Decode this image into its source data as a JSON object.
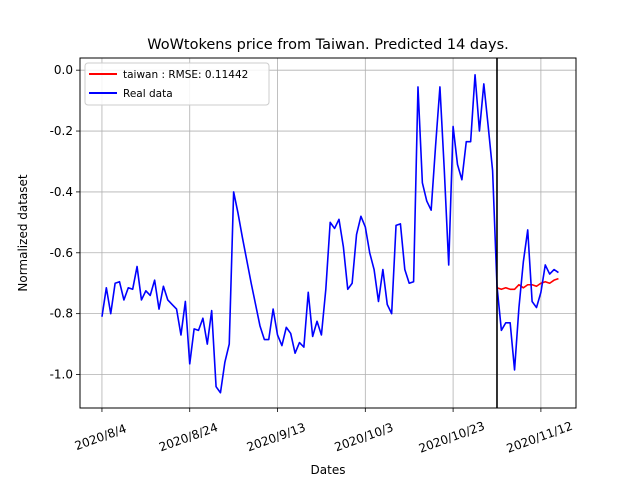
{
  "chart_data": {
    "type": "line",
    "title": "WoWtokens price from Taiwan. Predicted 14 days.",
    "xlabel": "Dates",
    "ylabel": "Normalized dataset",
    "x_ticks": [
      "2020/8/4",
      "2020/8/24",
      "2020/9/13",
      "2020/10/3",
      "2020/10/23",
      "2020/11/12"
    ],
    "y_ticks": [
      "0.0",
      "-0.2",
      "-0.4",
      "-0.6",
      "-0.8",
      "-1.0"
    ],
    "y_tick_values": [
      0.0,
      -0.2,
      -0.4,
      -0.6,
      -0.8,
      -1.0
    ],
    "xlim": [
      -5,
      108
    ],
    "ylim": [
      -1.11,
      0.04
    ],
    "grid": true,
    "legend_position": "upper-left",
    "split_day": 90,
    "colors": {
      "real": "#0000ff",
      "prediction": "#ff0000",
      "split": "#000000",
      "grid": "#b0b0b0"
    },
    "series": [
      {
        "name": "Real data",
        "color": "#0000ff",
        "x": [
          0,
          1,
          2,
          3,
          4,
          5,
          6,
          7,
          8,
          9,
          10,
          11,
          12,
          13,
          14,
          15,
          16,
          17,
          18,
          19,
          20,
          21,
          22,
          23,
          24,
          25,
          26,
          27,
          28,
          29,
          30,
          31,
          32,
          33,
          34,
          35,
          36,
          37,
          38,
          39,
          40,
          41,
          42,
          43,
          44,
          45,
          46,
          47,
          48,
          49,
          50,
          51,
          52,
          53,
          54,
          55,
          56,
          57,
          58,
          59,
          60,
          61,
          62,
          63,
          64,
          65,
          66,
          67,
          68,
          69,
          70,
          71,
          72,
          73,
          74,
          75,
          76,
          77,
          78,
          79,
          80,
          81,
          82,
          83,
          84,
          85,
          86,
          87,
          88,
          89,
          90,
          91,
          92,
          93,
          94,
          95,
          96,
          97,
          98,
          99,
          100,
          101,
          102,
          103,
          104
        ],
        "y": [
          -0.81,
          -0.715,
          -0.8,
          -0.7,
          -0.695,
          -0.755,
          -0.715,
          -0.72,
          -0.645,
          -0.755,
          -0.725,
          -0.74,
          -0.69,
          -0.785,
          -0.71,
          -0.755,
          -0.77,
          -0.785,
          -0.87,
          -0.76,
          -0.965,
          -0.85,
          -0.855,
          -0.815,
          -0.9,
          -0.79,
          -1.04,
          -1.06,
          -0.96,
          -0.9,
          -0.4,
          -0.47,
          -0.55,
          -0.625,
          -0.7,
          -0.77,
          -0.84,
          -0.885,
          -0.885,
          -0.785,
          -0.87,
          -0.905,
          -0.845,
          -0.865,
          -0.93,
          -0.895,
          -0.91,
          -0.73,
          -0.875,
          -0.825,
          -0.87,
          -0.72,
          -0.5,
          -0.52,
          -0.49,
          -0.58,
          -0.72,
          -0.7,
          -0.54,
          -0.48,
          -0.515,
          -0.6,
          -0.655,
          -0.76,
          -0.655,
          -0.77,
          -0.8,
          -0.51,
          -0.505,
          -0.655,
          -0.7,
          -0.695,
          -0.055,
          -0.37,
          -0.43,
          -0.46,
          -0.25,
          -0.055,
          -0.33,
          -0.64,
          -0.185,
          -0.31,
          -0.36,
          -0.235,
          -0.235,
          -0.015,
          -0.2,
          -0.045,
          -0.185,
          -0.33,
          -0.71,
          -0.855,
          -0.83,
          -0.83,
          -0.985,
          -0.78,
          -0.63,
          -0.525,
          -0.76,
          -0.78,
          -0.73,
          -0.64,
          -0.67,
          -0.655,
          -0.665
        ]
      },
      {
        "name": "taiwan : RMSE: 0.11442",
        "color": "#ff0000",
        "x": [
          90,
          91,
          92,
          93,
          94,
          95,
          96,
          97,
          98,
          99,
          100,
          101,
          102,
          103,
          104
        ],
        "y": [
          -0.715,
          -0.72,
          -0.715,
          -0.72,
          -0.72,
          -0.705,
          -0.715,
          -0.705,
          -0.705,
          -0.71,
          -0.7,
          -0.695,
          -0.7,
          -0.69,
          -0.685
        ]
      }
    ],
    "legend": [
      "taiwan : RMSE: 0.11442",
      "Real data"
    ]
  }
}
